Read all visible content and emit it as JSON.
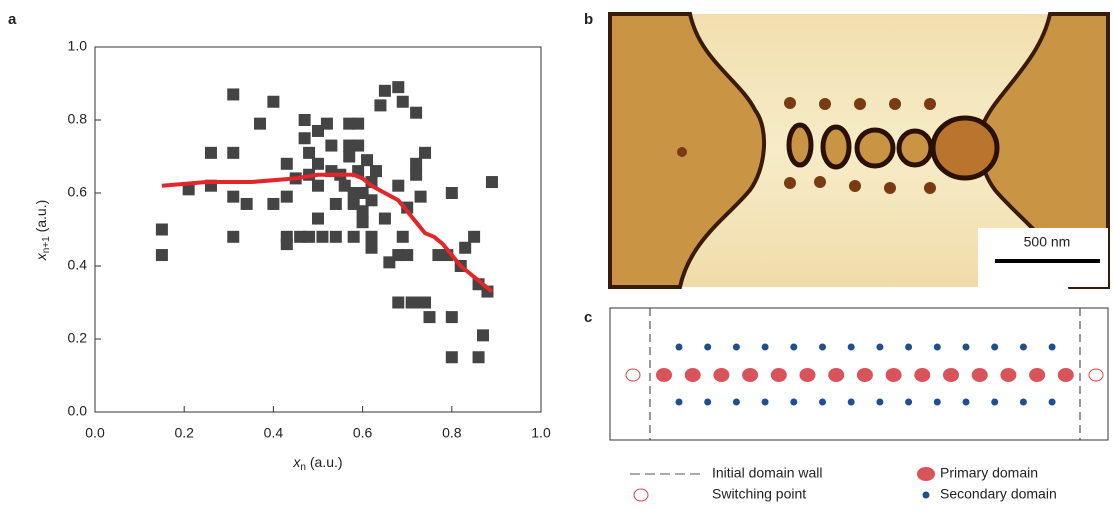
{
  "panel_labels": [
    "a",
    "b",
    "c"
  ],
  "chart_data": {
    "type": "scatter",
    "x_label": {
      "var": "x",
      "sub": "n",
      "unit": " (a.u.)"
    },
    "y_label": {
      "var": "x",
      "sub": "n+1",
      "unit": " (a.u.)"
    },
    "xlim": [
      0,
      1
    ],
    "ylim": [
      0,
      1
    ],
    "xticks": [
      {
        "value": 0,
        "label": "0.0"
      },
      0.2,
      0.4,
      0.6,
      0.8,
      {
        "value": 1,
        "label": "1.0"
      }
    ],
    "yticks": [
      {
        "value": 0,
        "label": "0.0"
      },
      0.2,
      0.4,
      0.6,
      0.8,
      {
        "value": 1,
        "label": "1.0"
      }
    ],
    "series": [
      {
        "kind": "markers",
        "color": "#444444",
        "x": [
          0.15,
          0.15,
          0.21,
          0.26,
          0.26,
          0.31,
          0.31,
          0.31,
          0.31,
          0.34,
          0.37,
          0.4,
          0.4,
          0.43,
          0.43,
          0.43,
          0.43,
          0.45,
          0.46,
          0.47,
          0.47,
          0.48,
          0.48,
          0.48,
          0.5,
          0.5,
          0.5,
          0.5,
          0.51,
          0.52,
          0.53,
          0.53,
          0.54,
          0.54,
          0.55,
          0.56,
          0.57,
          0.57,
          0.57,
          0.58,
          0.58,
          0.58,
          0.59,
          0.59,
          0.59,
          0.6,
          0.6,
          0.6,
          0.61,
          0.62,
          0.62,
          0.62,
          0.62,
          0.63,
          0.64,
          0.65,
          0.65,
          0.66,
          0.68,
          0.68,
          0.68,
          0.68,
          0.69,
          0.69,
          0.7,
          0.7,
          0.71,
          0.72,
          0.72,
          0.72,
          0.73,
          0.73,
          0.74,
          0.74,
          0.75,
          0.77,
          0.79,
          0.8,
          0.8,
          0.8,
          0.82,
          0.83,
          0.85,
          0.86,
          0.86,
          0.87,
          0.88,
          0.89
        ],
        "values": [
          0.5,
          0.43,
          0.61,
          0.71,
          0.62,
          0.87,
          0.71,
          0.59,
          0.48,
          0.57,
          0.79,
          0.85,
          0.57,
          0.68,
          0.59,
          0.48,
          0.46,
          0.64,
          0.48,
          0.8,
          0.75,
          0.71,
          0.65,
          0.48,
          0.77,
          0.68,
          0.62,
          0.53,
          0.48,
          0.79,
          0.73,
          0.66,
          0.57,
          0.48,
          0.65,
          0.62,
          0.79,
          0.73,
          0.7,
          0.6,
          0.57,
          0.48,
          0.79,
          0.73,
          0.66,
          0.6,
          0.55,
          0.52,
          0.69,
          0.48,
          0.58,
          0.63,
          0.45,
          0.66,
          0.84,
          0.88,
          0.53,
          0.41,
          0.62,
          0.43,
          0.3,
          0.89,
          0.85,
          0.48,
          0.56,
          0.43,
          0.3,
          0.82,
          0.68,
          0.65,
          0.59,
          0.3,
          0.3,
          0.71,
          0.26,
          0.43,
          0.43,
          0.26,
          0.6,
          0.15,
          0.4,
          0.45,
          0.48,
          0.15,
          0.35,
          0.21,
          0.33,
          0.63
        ]
      },
      {
        "kind": "line",
        "color": "#e3262a",
        "x": [
          0.15,
          0.25,
          0.35,
          0.45,
          0.5,
          0.55,
          0.58,
          0.6,
          0.62,
          0.65,
          0.68,
          0.7,
          0.72,
          0.74,
          0.76,
          0.78,
          0.8,
          0.82,
          0.85,
          0.87,
          0.89
        ],
        "values": [
          0.62,
          0.63,
          0.63,
          0.64,
          0.65,
          0.65,
          0.65,
          0.64,
          0.62,
          0.6,
          0.58,
          0.55,
          0.52,
          0.49,
          0.48,
          0.46,
          0.43,
          0.4,
          0.37,
          0.35,
          0.33
        ]
      }
    ]
  },
  "image": {
    "scale_bar": "500 nm"
  },
  "diagram": {
    "legend": [
      "Initial domain wall",
      "Switching point",
      "Primary domain",
      "Secondary domain"
    ]
  }
}
